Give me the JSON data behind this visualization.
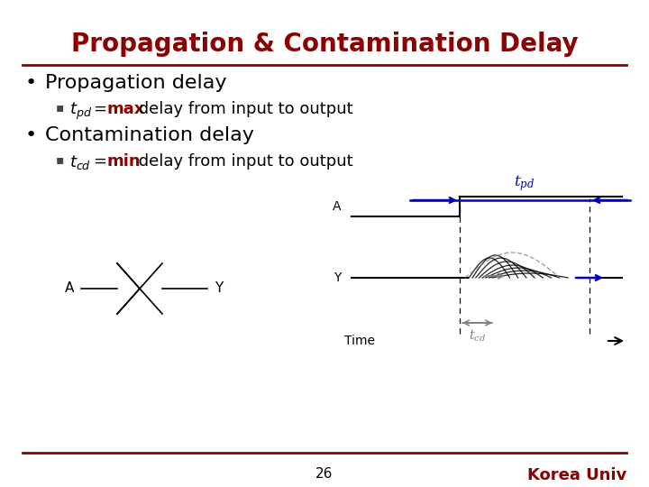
{
  "title": "Propagation & Contamination Delay",
  "title_color": "#8B0000",
  "title_fontsize": 20,
  "bg_color": "#FFFFFF",
  "separator_color": "#8B0000",
  "bullet1": "Propagation delay",
  "bullet2": "Contamination delay",
  "keyword_max": "max",
  "keyword_min": "min",
  "keyword_color": "#8B0000",
  "bullet_color": "#000000",
  "bullet_fontsize": 16,
  "sub_fontsize": 13,
  "footer_line": "#8B0000",
  "page_num": "26",
  "korea_univ": "Korea Univ",
  "korea_univ_color": "#8B0000",
  "blue_color": "#0000CC",
  "gray_color": "#808080",
  "black": "#000000"
}
